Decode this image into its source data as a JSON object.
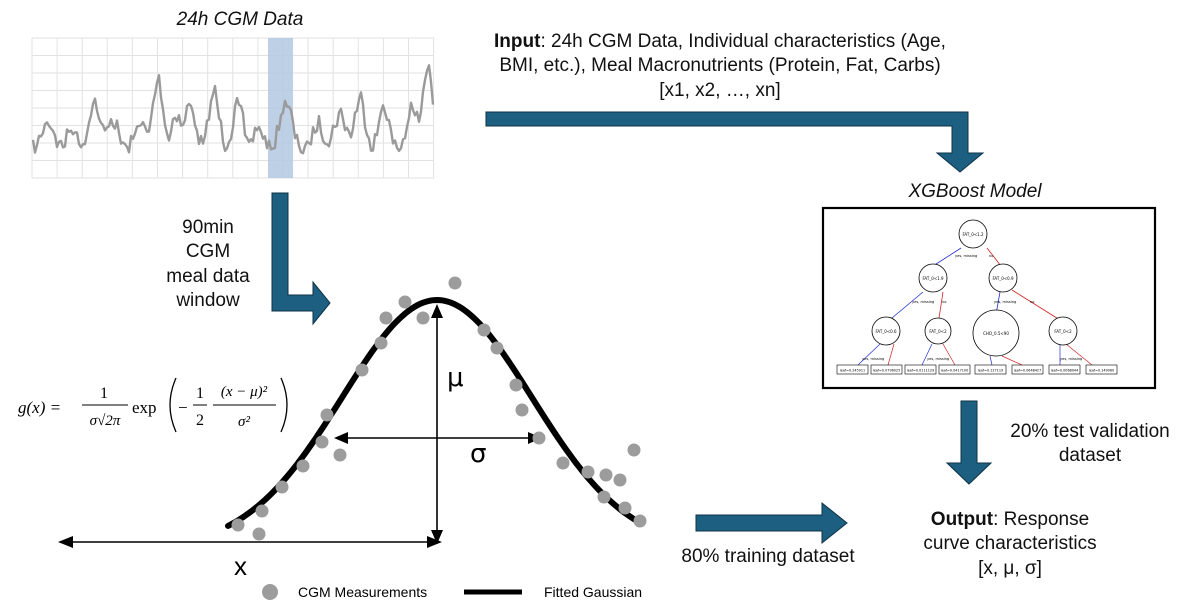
{
  "cgm_panel": {
    "title": "24h CGM Data"
  },
  "input_block": {
    "label": "Input",
    "text": ": 24h CGM Data, Individual characteristics (Age, BMI, etc.), Meal Macronutrients (Protein, Fat, Carbs) [x1, x2, …, xn]"
  },
  "model_block": {
    "title": "XGBoost Model",
    "tree": {
      "root": "FAT_0<1.2",
      "level1": [
        "FAT_0<1.9",
        "FAT_0<0.9"
      ],
      "level2": [
        "FAT_0<0.6",
        "FAT_0<2",
        "CHO_0.5<90",
        "FAT_0<2"
      ],
      "edge_labels": [
        "yes, missing",
        "no"
      ],
      "leaves": [
        "leaf=0.245911",
        "leaf=0.0796025",
        "leaf=0.0111129",
        "leaf=0.0417100",
        "leaf=0.127119",
        "leaf=0.0648427",
        "leaf=0.0068044",
        "leaf=0.149060"
      ]
    }
  },
  "window_block": {
    "lines": [
      "90min",
      "CGM",
      "meal data",
      "window"
    ]
  },
  "validation_block": {
    "lines": [
      "20% test validation",
      "dataset"
    ]
  },
  "training_block": {
    "label": "80% training dataset"
  },
  "output_block": {
    "label": "Output",
    "line1_rest": ": Response",
    "line2": "curve characteristics",
    "line3": "[x, μ, σ]"
  },
  "gaussian_panel": {
    "mu_symbol": "μ",
    "sigma_symbol": "σ",
    "x_symbol": "x",
    "formula": {
      "lhs": "g(x) =",
      "frac1_num": "1",
      "frac1_den": "σ√2π",
      "exp": "exp",
      "minus": "−",
      "frac2_num": "1",
      "frac2_den": "2",
      "frac3_num": "(x − μ)²",
      "frac3_den": "σ²"
    },
    "legend": {
      "measurements": "CGM Measurements",
      "fitted": "Fitted Gaussian"
    }
  },
  "colors": {
    "arrow_fill": "#1d5f80",
    "highlight": "#b7cbe3",
    "cgm_line": "#9a9a9a",
    "dot": "#9c9c9c",
    "curve": "#000000"
  }
}
